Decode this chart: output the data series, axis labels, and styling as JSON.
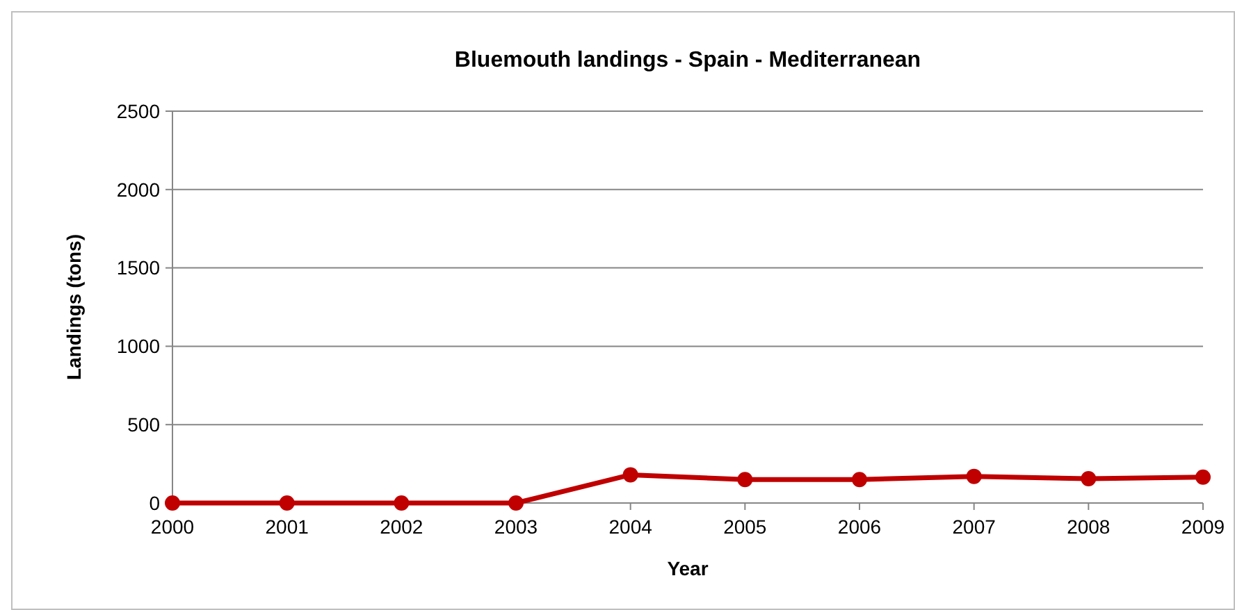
{
  "chart_data": {
    "type": "line",
    "title": "Bluemouth landings  - Spain - Mediterranean",
    "xlabel": "Year",
    "ylabel": "Landings (tons)",
    "x": [
      2000,
      2001,
      2002,
      2003,
      2004,
      2005,
      2006,
      2007,
      2008,
      2009
    ],
    "series": [
      {
        "color": "#c00000",
        "values": [
          0,
          0,
          0,
          0,
          180,
          150,
          150,
          170,
          155,
          165
        ]
      }
    ],
    "xlim": [
      2000,
      2009
    ],
    "xticks": [
      2000,
      2001,
      2002,
      2003,
      2004,
      2005,
      2006,
      2007,
      2008,
      2009
    ],
    "ylim": [
      0,
      2500
    ],
    "yticks": [
      0,
      500,
      1000,
      1500,
      2000,
      2500
    ],
    "grid": "y",
    "marker": "circle",
    "line_style": "solid"
  }
}
